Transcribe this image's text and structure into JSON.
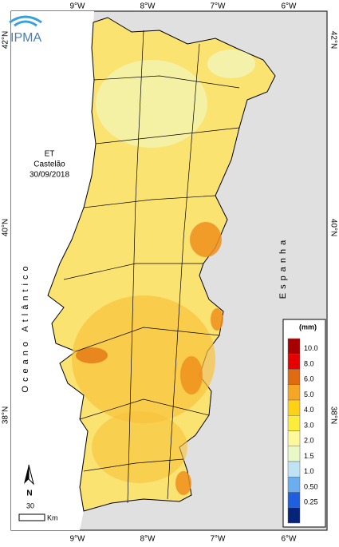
{
  "logo": "IPMA",
  "lon_labels": [
    "9°W",
    "8°W",
    "7°W",
    "6°W"
  ],
  "lat_labels": [
    "42°N",
    "40°N",
    "38°N"
  ],
  "caption": {
    "variable": "ET",
    "station": "Castelão",
    "date": "30/09/2018"
  },
  "ocean_label": "Oceano Atlântico",
  "country_label": "Espanha",
  "legend": {
    "title": "(mm)",
    "labels": [
      "10.0",
      "8.0",
      "6.0",
      "5.0",
      "4.0",
      "3.0",
      "2.0",
      "1.5",
      "1.0",
      "0.50",
      "0.25"
    ],
    "colors": [
      "#a80000",
      "#e60000",
      "#e06a10",
      "#f5a623",
      "#fcd116",
      "#fcec3c",
      "#fdf99a",
      "#eaf8c8",
      "#bfe3f5",
      "#6aaef0",
      "#1e5fe0",
      "#06257a"
    ]
  },
  "scale": {
    "north": "N",
    "distance": "30",
    "unit": "Km"
  }
}
